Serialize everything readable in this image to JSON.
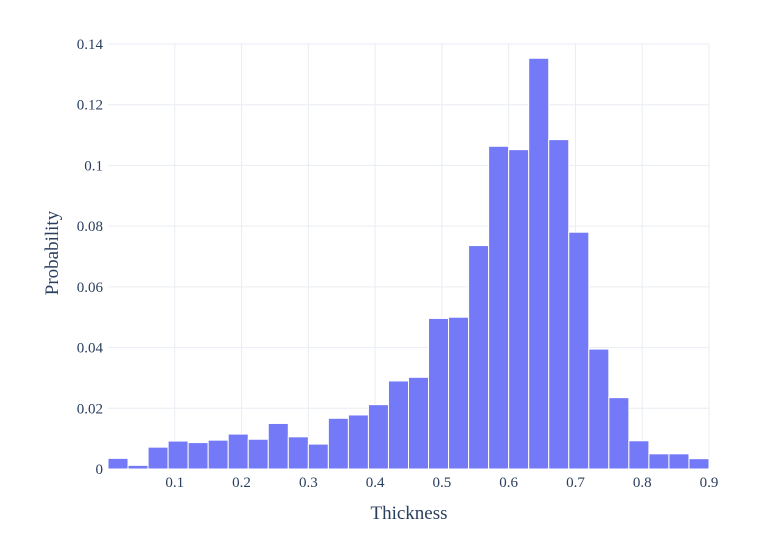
{
  "chart_data": {
    "type": "bar",
    "subtype": "histogram",
    "xlabel": "Thickness",
    "ylabel": "Probability",
    "bin_width": 0.03,
    "bins": [
      {
        "x0": 0.0,
        "x1": 0.03,
        "value": 0.0035
      },
      {
        "x0": 0.03,
        "x1": 0.06,
        "value": 0.0012
      },
      {
        "x0": 0.06,
        "x1": 0.09,
        "value": 0.0072
      },
      {
        "x0": 0.09,
        "x1": 0.12,
        "value": 0.0092
      },
      {
        "x0": 0.12,
        "x1": 0.15,
        "value": 0.0087
      },
      {
        "x0": 0.15,
        "x1": 0.18,
        "value": 0.0095
      },
      {
        "x0": 0.18,
        "x1": 0.21,
        "value": 0.0115
      },
      {
        "x0": 0.21,
        "x1": 0.24,
        "value": 0.0098
      },
      {
        "x0": 0.24,
        "x1": 0.27,
        "value": 0.015
      },
      {
        "x0": 0.27,
        "x1": 0.3,
        "value": 0.0106
      },
      {
        "x0": 0.3,
        "x1": 0.33,
        "value": 0.0082
      },
      {
        "x0": 0.33,
        "x1": 0.36,
        "value": 0.0167
      },
      {
        "x0": 0.36,
        "x1": 0.39,
        "value": 0.0178
      },
      {
        "x0": 0.39,
        "x1": 0.42,
        "value": 0.0212
      },
      {
        "x0": 0.42,
        "x1": 0.45,
        "value": 0.029
      },
      {
        "x0": 0.45,
        "x1": 0.48,
        "value": 0.0302
      },
      {
        "x0": 0.48,
        "x1": 0.51,
        "value": 0.0496
      },
      {
        "x0": 0.51,
        "x1": 0.54,
        "value": 0.05
      },
      {
        "x0": 0.54,
        "x1": 0.57,
        "value": 0.0736
      },
      {
        "x0": 0.57,
        "x1": 0.6,
        "value": 0.1063
      },
      {
        "x0": 0.6,
        "x1": 0.63,
        "value": 0.1052
      },
      {
        "x0": 0.63,
        "x1": 0.66,
        "value": 0.1353
      },
      {
        "x0": 0.66,
        "x1": 0.69,
        "value": 0.1085
      },
      {
        "x0": 0.69,
        "x1": 0.72,
        "value": 0.078
      },
      {
        "x0": 0.72,
        "x1": 0.75,
        "value": 0.0395
      },
      {
        "x0": 0.75,
        "x1": 0.78,
        "value": 0.0235
      },
      {
        "x0": 0.78,
        "x1": 0.81,
        "value": 0.0093
      },
      {
        "x0": 0.81,
        "x1": 0.84,
        "value": 0.005
      },
      {
        "x0": 0.84,
        "x1": 0.87,
        "value": 0.005
      },
      {
        "x0": 0.87,
        "x1": 0.9,
        "value": 0.0034
      }
    ],
    "xlim": [
      0,
      0.9
    ],
    "ylim": [
      0,
      0.14
    ],
    "x_ticks": [
      0.1,
      0.2,
      0.3,
      0.4,
      0.5,
      0.6,
      0.7,
      0.8,
      0.9
    ],
    "x_tick_labels": [
      "0.1",
      "0.2",
      "0.3",
      "0.4",
      "0.5",
      "0.6",
      "0.7",
      "0.8",
      "0.9"
    ],
    "y_ticks": [
      0,
      0.02,
      0.04,
      0.06,
      0.08,
      0.1,
      0.12,
      0.14
    ],
    "y_tick_labels": [
      "0",
      "0.02",
      "0.04",
      "0.06",
      "0.08",
      "0.1",
      "0.12",
      "0.14"
    ],
    "grid": true,
    "colors": {
      "bar_fill": "#7379f7",
      "bar_edge": "#ffffff",
      "grid": "#e9edf3",
      "text": "#2a3f5f",
      "background": "#ffffff"
    }
  }
}
